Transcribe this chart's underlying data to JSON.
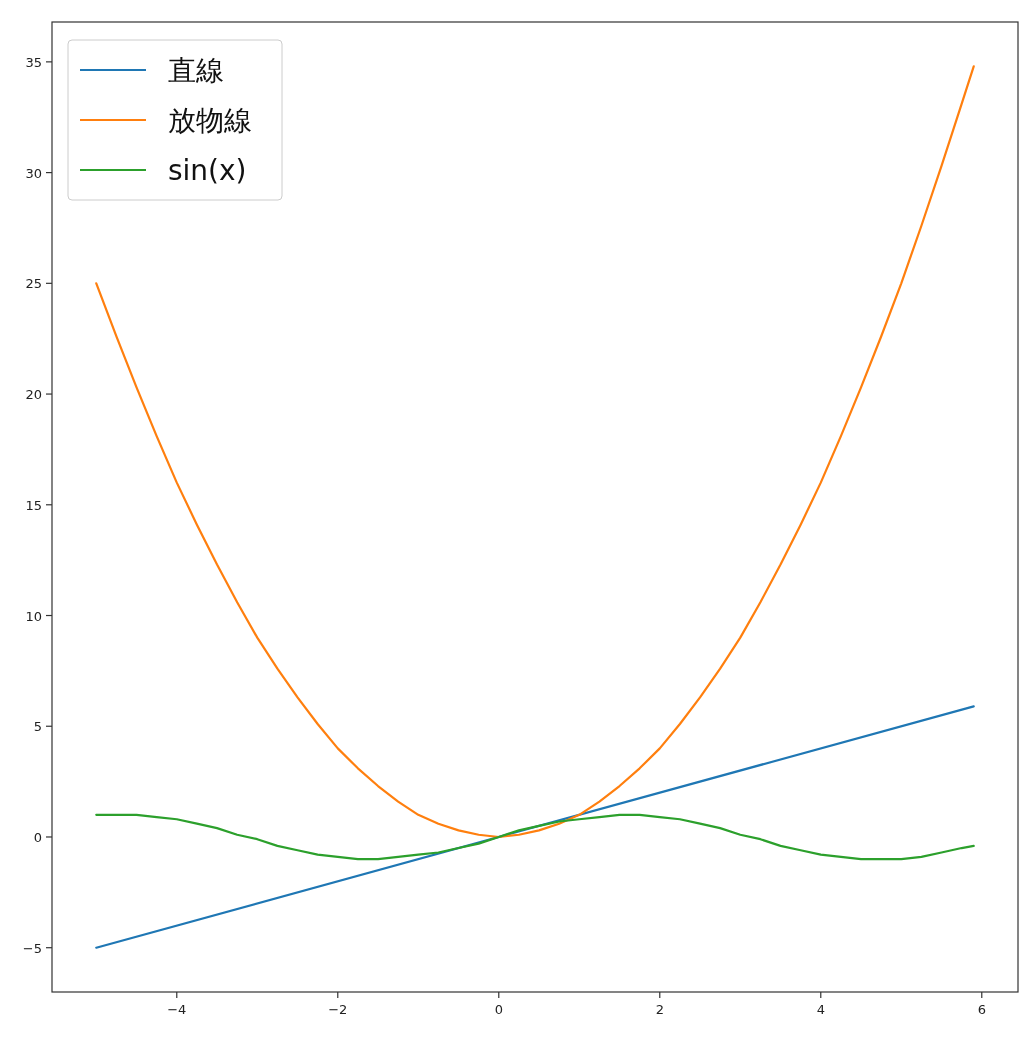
{
  "chart_data": {
    "type": "line",
    "x": [
      -5,
      -4.75,
      -4.5,
      -4.25,
      -4,
      -3.75,
      -3.5,
      -3.25,
      -3,
      -2.75,
      -2.5,
      -2.25,
      -2,
      -1.75,
      -1.5,
      -1.25,
      -1,
      -0.75,
      -0.5,
      -0.25,
      0,
      0.25,
      0.5,
      0.75,
      1,
      1.25,
      1.5,
      1.75,
      2,
      2.25,
      2.5,
      2.75,
      3,
      3.25,
      3.5,
      3.75,
      4,
      4.25,
      4.5,
      4.75,
      5,
      5.25,
      5.5,
      5.75,
      5.9
    ],
    "series": [
      {
        "name": "直線",
        "color": "#1f77b4",
        "x": [
          -5,
          5.9
        ],
        "values": [
          -5,
          5.9
        ]
      },
      {
        "name": "放物線",
        "color": "#ff7f0e",
        "values": [
          25,
          22.6,
          20.3,
          18.1,
          16,
          14.1,
          12.3,
          10.6,
          9,
          7.6,
          6.3,
          5.1,
          4,
          3.1,
          2.3,
          1.6,
          1,
          0.6,
          0.3,
          0.1,
          0,
          0.1,
          0.3,
          0.6,
          1,
          1.6,
          2.3,
          3.1,
          4,
          5.1,
          6.3,
          7.6,
          9,
          10.6,
          12.3,
          14.1,
          16,
          18.1,
          20.3,
          22.6,
          25,
          27.6,
          30.3,
          33.1,
          34.8
        ]
      },
      {
        "name": "sin(x)",
        "color": "#2ca02c",
        "values": [
          1.0,
          1.0,
          1.0,
          0.9,
          0.8,
          0.6,
          0.4,
          0.1,
          -0.1,
          -0.4,
          -0.6,
          -0.8,
          -0.9,
          -1.0,
          -1.0,
          -0.9,
          -0.8,
          -0.7,
          -0.5,
          -0.3,
          0,
          0.3,
          0.5,
          0.7,
          0.8,
          0.9,
          1.0,
          1.0,
          0.9,
          0.8,
          0.6,
          0.4,
          0.1,
          -0.1,
          -0.4,
          -0.6,
          -0.8,
          -0.9,
          -1.0,
          -1.0,
          -1.0,
          -0.9,
          -0.7,
          -0.5,
          -0.4
        ]
      }
    ],
    "xlim": [
      -5.55,
      6.45
    ],
    "ylim": [
      -7,
      36.8
    ],
    "xticks": [
      {
        "value": -4,
        "label": "−4"
      },
      {
        "value": -2,
        "label": "−2"
      },
      0,
      2,
      4,
      6
    ],
    "yticks": [
      {
        "value": -5,
        "label": "−5"
      },
      0,
      5,
      10,
      15,
      20,
      25,
      30,
      35
    ],
    "grid": false,
    "legend": "top left"
  }
}
